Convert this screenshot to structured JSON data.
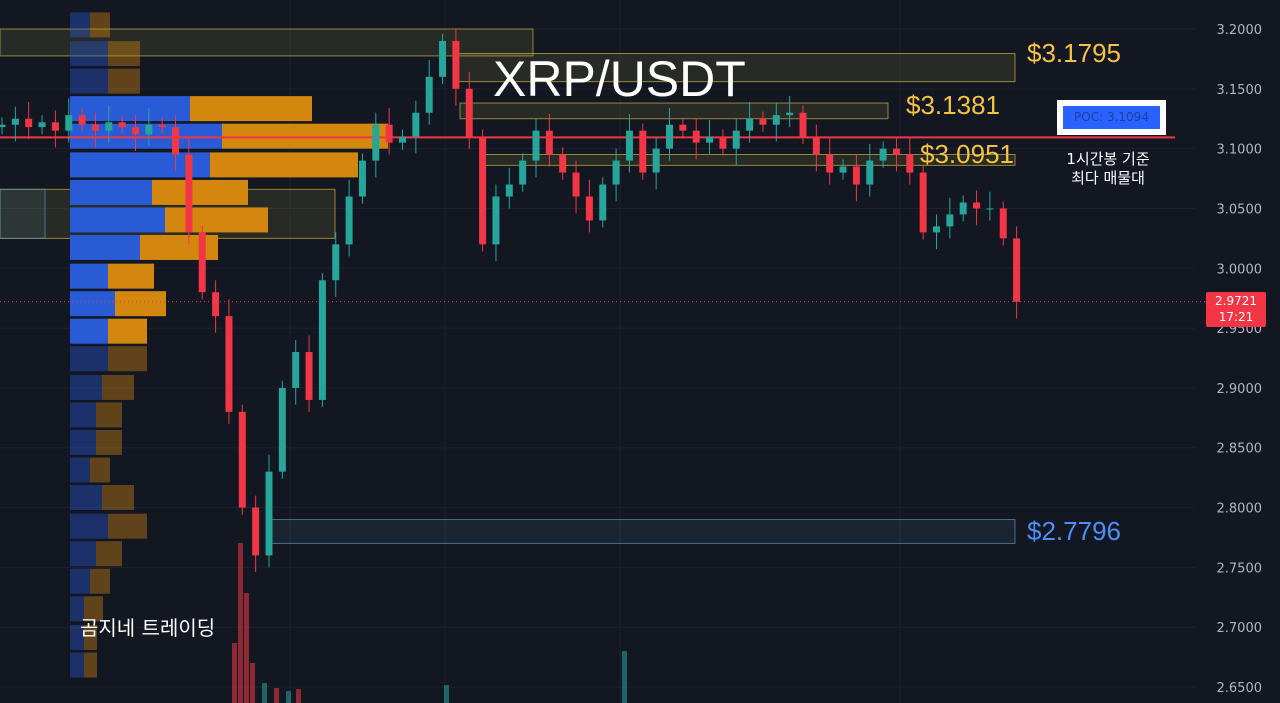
{
  "header": {
    "title": "XRP/USDT",
    "brand": "곰지네 트레이딩"
  },
  "annotations": {
    "poc_label": "POC: 3.1094",
    "poc_note_line1": "1시간봉 기준",
    "poc_note_line2": "최다 매물대",
    "levels": [
      {
        "text": "$3.1795",
        "price": 3.1795,
        "color": "#f5c242"
      },
      {
        "text": "$3.1381",
        "price": 3.1381,
        "color": "#f5c242"
      },
      {
        "text": "$3.0951",
        "price": 3.0951,
        "color": "#f5c242"
      },
      {
        "text": "$2.7796",
        "price": 2.7796,
        "color": "#4d8ef7"
      }
    ],
    "current_price": "2.9721",
    "countdown": "17:21"
  },
  "colors": {
    "background": "#131722",
    "up": "#26a69a",
    "down": "#f23645",
    "poc_line": "#f23645",
    "profile_up": "#2a5bd7",
    "profile_down": "#d4870f",
    "zone_yellow": "#c9b244",
    "zone_blue": "#5b8fb0"
  },
  "chart_data": {
    "type": "candlestick",
    "symbol": "XRP/USDT",
    "ylim": [
      2.65,
      3.2
    ],
    "y_ticks": [
      "3.2000",
      "3.1500",
      "3.1000",
      "3.0500",
      "3.0000",
      "2.9500",
      "2.9000",
      "2.8500",
      "2.8000",
      "2.7500",
      "2.7000",
      "2.6500"
    ],
    "grid": true,
    "poc": 3.1094,
    "last_price": 2.9721,
    "first_open": 3.118,
    "closes": [
      3.12,
      3.125,
      3.118,
      3.122,
      3.115,
      3.128,
      3.12,
      3.115,
      3.122,
      3.118,
      3.112,
      3.12,
      3.118,
      3.095,
      3.03,
      2.98,
      2.96,
      2.88,
      2.8,
      2.76,
      2.83,
      2.9,
      2.93,
      2.89,
      2.99,
      3.02,
      3.06,
      3.09,
      3.12,
      3.105,
      3.11,
      3.13,
      3.16,
      3.19,
      3.15,
      3.11,
      3.02,
      3.06,
      3.07,
      3.09,
      3.115,
      3.095,
      3.08,
      3.06,
      3.04,
      3.07,
      3.09,
      3.115,
      3.08,
      3.1,
      3.12,
      3.115,
      3.105,
      3.11,
      3.1,
      3.115,
      3.125,
      3.12,
      3.128,
      3.13,
      3.11,
      3.095,
      3.08,
      3.085,
      3.07,
      3.09,
      3.1,
      3.095,
      3.08,
      3.03,
      3.035,
      3.045,
      3.055,
      3.05,
      3.05,
      3.025,
      2.972
    ],
    "value_area": [
      2.935,
      3.145
    ],
    "volume_profile": [
      {
        "price": 3.203,
        "up": 20,
        "down": 20
      },
      {
        "price": 3.179,
        "up": 38,
        "down": 32
      },
      {
        "price": 3.156,
        "up": 38,
        "down": 32
      },
      {
        "price": 3.133,
        "up": 120,
        "down": 122
      },
      {
        "price": 3.11,
        "up": 152,
        "down": 166
      },
      {
        "price": 3.086,
        "up": 140,
        "down": 148
      },
      {
        "price": 3.063,
        "up": 82,
        "down": 96
      },
      {
        "price": 3.04,
        "up": 95,
        "down": 103
      },
      {
        "price": 3.017,
        "up": 70,
        "down": 78
      },
      {
        "price": 2.993,
        "up": 38,
        "down": 46
      },
      {
        "price": 2.97,
        "up": 45,
        "down": 51
      },
      {
        "price": 2.947,
        "up": 38,
        "down": 39
      },
      {
        "price": 2.924,
        "up": 38,
        "down": 39
      },
      {
        "price": 2.9,
        "up": 32,
        "down": 32
      },
      {
        "price": 2.877,
        "up": 26,
        "down": 26
      },
      {
        "price": 2.854,
        "up": 26,
        "down": 26
      },
      {
        "price": 2.831,
        "up": 20,
        "down": 20
      },
      {
        "price": 2.808,
        "up": 32,
        "down": 32
      },
      {
        "price": 2.784,
        "up": 38,
        "down": 39
      },
      {
        "price": 2.761,
        "up": 26,
        "down": 26
      },
      {
        "price": 2.738,
        "up": 20,
        "down": 20
      },
      {
        "price": 2.715,
        "up": 14,
        "down": 19
      },
      {
        "price": 2.691,
        "up": 14,
        "down": 13
      },
      {
        "price": 2.668,
        "up": 14,
        "down": 13
      }
    ],
    "zones": [
      {
        "low": 3.1775,
        "high": 3.2,
        "color": "yellow"
      },
      {
        "low": 3.156,
        "high": 3.1795,
        "color": "yellow"
      },
      {
        "low": 3.125,
        "high": 3.1381,
        "color": "yellow"
      },
      {
        "low": 3.086,
        "high": 3.0951,
        "color": "yellow"
      },
      {
        "low": 3.025,
        "high": 3.066,
        "color": "yellow"
      },
      {
        "low": 3.025,
        "high": 3.066,
        "color": "blue"
      },
      {
        "low": 2.77,
        "high": 2.79,
        "color": "blue"
      }
    ]
  }
}
